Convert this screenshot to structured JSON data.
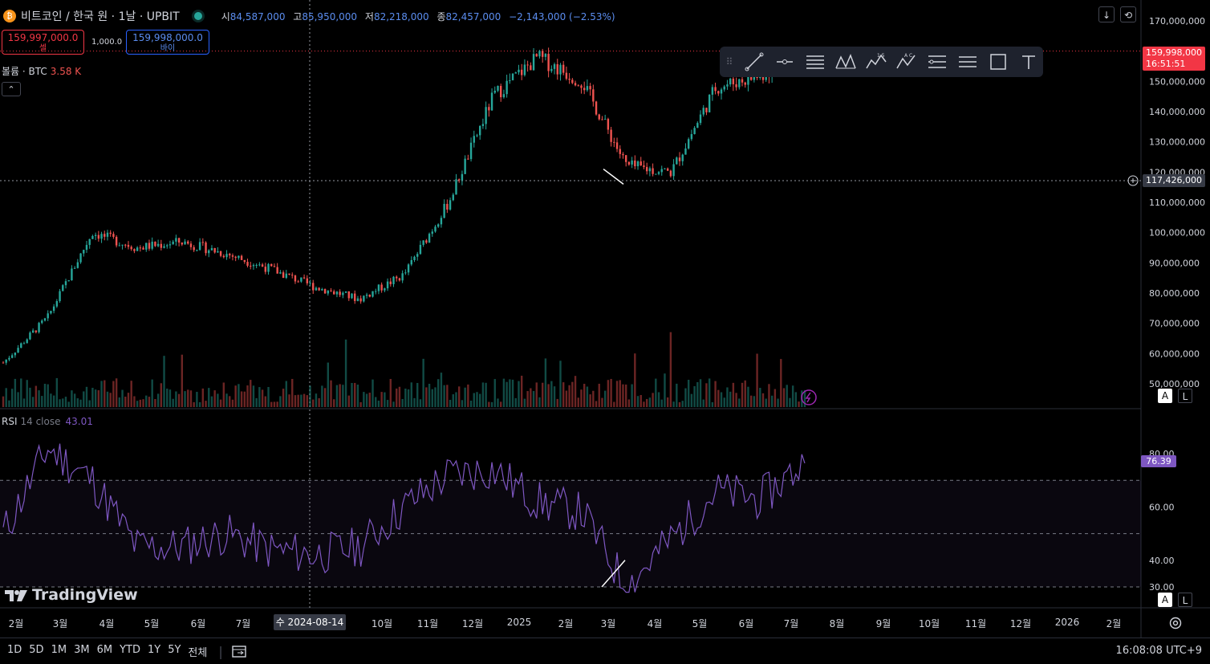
{
  "header": {
    "symbol": "비트코인 / 한국 원 · 1날 · UPBIT",
    "ohlc": [
      {
        "k": "시",
        "v": "84,587,000"
      },
      {
        "k": "고",
        "v": "85,950,000"
      },
      {
        "k": "저",
        "v": "82,218,000"
      },
      {
        "k": "종",
        "v": "82,457,000"
      }
    ],
    "change": "−2,143,000 (−2.53%)"
  },
  "trade": {
    "sell_price": "159,997,000.0",
    "sell_label": "셀",
    "spread": "1,000.0",
    "buy_price": "159,998,000.0",
    "buy_label": "바이"
  },
  "volume_legend": {
    "label": "볼륨 · BTC",
    "value": "3.58 K"
  },
  "collapse_glyph": "⌃",
  "rsi_legend": {
    "label": "RSI",
    "params": "14 close",
    "value": "43.01"
  },
  "right_buttons": {
    "down": "↓",
    "sync": "⟲"
  },
  "price_axis": {
    "ticks": [
      "170,000,000",
      "160,000,000",
      "150,000,000",
      "140,000,000",
      "130,000,000",
      "120,000,000",
      "110,000,000",
      "100,000,000",
      "90,000,000",
      "80,000,000",
      "70,000,000",
      "60,000,000",
      "50,000,000"
    ],
    "current_price": "159,998,000",
    "countdown": "16:51:51",
    "crosshair_price": "117,426,000"
  },
  "rsi_axis": {
    "ticks": [
      "80.00",
      "60.00",
      "40.00",
      "30.00"
    ],
    "current": "76.39"
  },
  "scale_buttons": {
    "auto": "A",
    "log": "L"
  },
  "brand": "TradingView",
  "x_axis": {
    "labels": [
      "2월",
      "3월",
      "4월",
      "5월",
      "6월",
      "7월",
      "10월",
      "11월",
      "12월",
      "2025",
      "2월",
      "3월",
      "4월",
      "5월",
      "6월",
      "7월",
      "8월",
      "9월",
      "10월",
      "11월",
      "12월",
      "2026",
      "2월"
    ],
    "crosshair_date": "수 2024-08-14"
  },
  "ranges": [
    "1D",
    "5D",
    "1M",
    "3M",
    "6M",
    "YTD",
    "1Y",
    "5Y",
    "전체"
  ],
  "clock": "16:08:08 UTC+9",
  "colors": {
    "up": "#26a69a",
    "down": "#ef5350",
    "rsi": "#7e57c2",
    "last_price": "#f23645",
    "accent": "#2962ff"
  },
  "chart_data": [
    {
      "type": "line",
      "title": "비트코인 / 한국 원 · 1날 · UPBIT",
      "ylim": [
        50000000,
        170000000
      ],
      "x": [
        "2024-01",
        "2024-02",
        "2024-03",
        "2024-04",
        "2024-05",
        "2024-06",
        "2024-07",
        "2024-08",
        "2024-09",
        "2024-10",
        "2024-11",
        "2024-12",
        "2025-01",
        "2025-02",
        "2025-03",
        "2025-04",
        "2025-05",
        "2025-06",
        "2025-07"
      ],
      "series": [
        {
          "values": [
            57000000,
            72000000,
            100000000,
            95000000,
            97000000,
            93000000,
            88000000,
            82000000,
            78000000,
            86000000,
            110000000,
            145000000,
            158000000,
            150000000,
            122000000,
            120000000,
            148000000,
            152000000,
            159998000
          ]
        }
      ]
    },
    {
      "type": "line",
      "title": "RSI 14 close",
      "ylim": [
        30,
        80
      ],
      "x": [
        "2024-01",
        "2024-02",
        "2024-03",
        "2024-04",
        "2024-05",
        "2024-06",
        "2024-07",
        "2024-08",
        "2024-09",
        "2024-10",
        "2024-11",
        "2024-12",
        "2025-01",
        "2025-02",
        "2025-03",
        "2025-04",
        "2025-05",
        "2025-06",
        "2025-07"
      ],
      "series": [
        {
          "values": [
            50,
            82,
            70,
            45,
            45,
            50,
            44,
            42,
            45,
            60,
            72,
            74,
            62,
            58,
            30,
            48,
            66,
            63,
            76.39
          ]
        }
      ]
    }
  ]
}
